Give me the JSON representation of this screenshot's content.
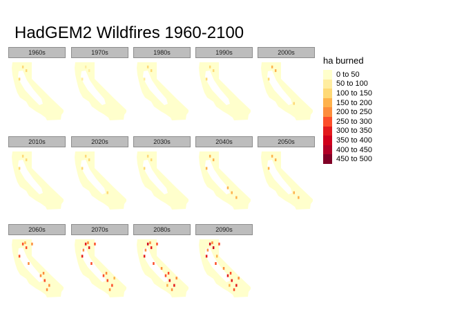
{
  "title": "HadGEM2 Wildfires 1960-2100",
  "facets": [
    {
      "label": "1960s",
      "intensity": 0.08
    },
    {
      "label": "1970s",
      "intensity": 0.05
    },
    {
      "label": "1980s",
      "intensity": 0.06
    },
    {
      "label": "1990s",
      "intensity": 0.07
    },
    {
      "label": "2000s",
      "intensity": 0.18
    },
    {
      "label": "2010s",
      "intensity": 0.12
    },
    {
      "label": "2020s",
      "intensity": 0.16
    },
    {
      "label": "2030s",
      "intensity": 0.14
    },
    {
      "label": "2040s",
      "intensity": 0.26
    },
    {
      "label": "2050s",
      "intensity": 0.2
    },
    {
      "label": "2060s",
      "intensity": 0.45
    },
    {
      "label": "2070s",
      "intensity": 0.55
    },
    {
      "label": "2080s",
      "intensity": 0.62
    },
    {
      "label": "2090s",
      "intensity": 0.65
    }
  ],
  "legend": {
    "title": "ha burned",
    "items": [
      {
        "label": "0 to 50",
        "color": "#ffffcc"
      },
      {
        "label": "50 to 100",
        "color": "#ffeda0"
      },
      {
        "label": "100 to 150",
        "color": "#fed976"
      },
      {
        "label": "150 to 200",
        "color": "#feb24c"
      },
      {
        "label": "200 to 250",
        "color": "#fd8d3c"
      },
      {
        "label": "250 to 300",
        "color": "#fc4e2a"
      },
      {
        "label": "300 to 350",
        "color": "#e31a1c"
      },
      {
        "label": "350 to 400",
        "color": "#d0001b"
      },
      {
        "label": "400 to 450",
        "color": "#b10026"
      },
      {
        "label": "450 to 500",
        "color": "#800026"
      }
    ]
  }
}
